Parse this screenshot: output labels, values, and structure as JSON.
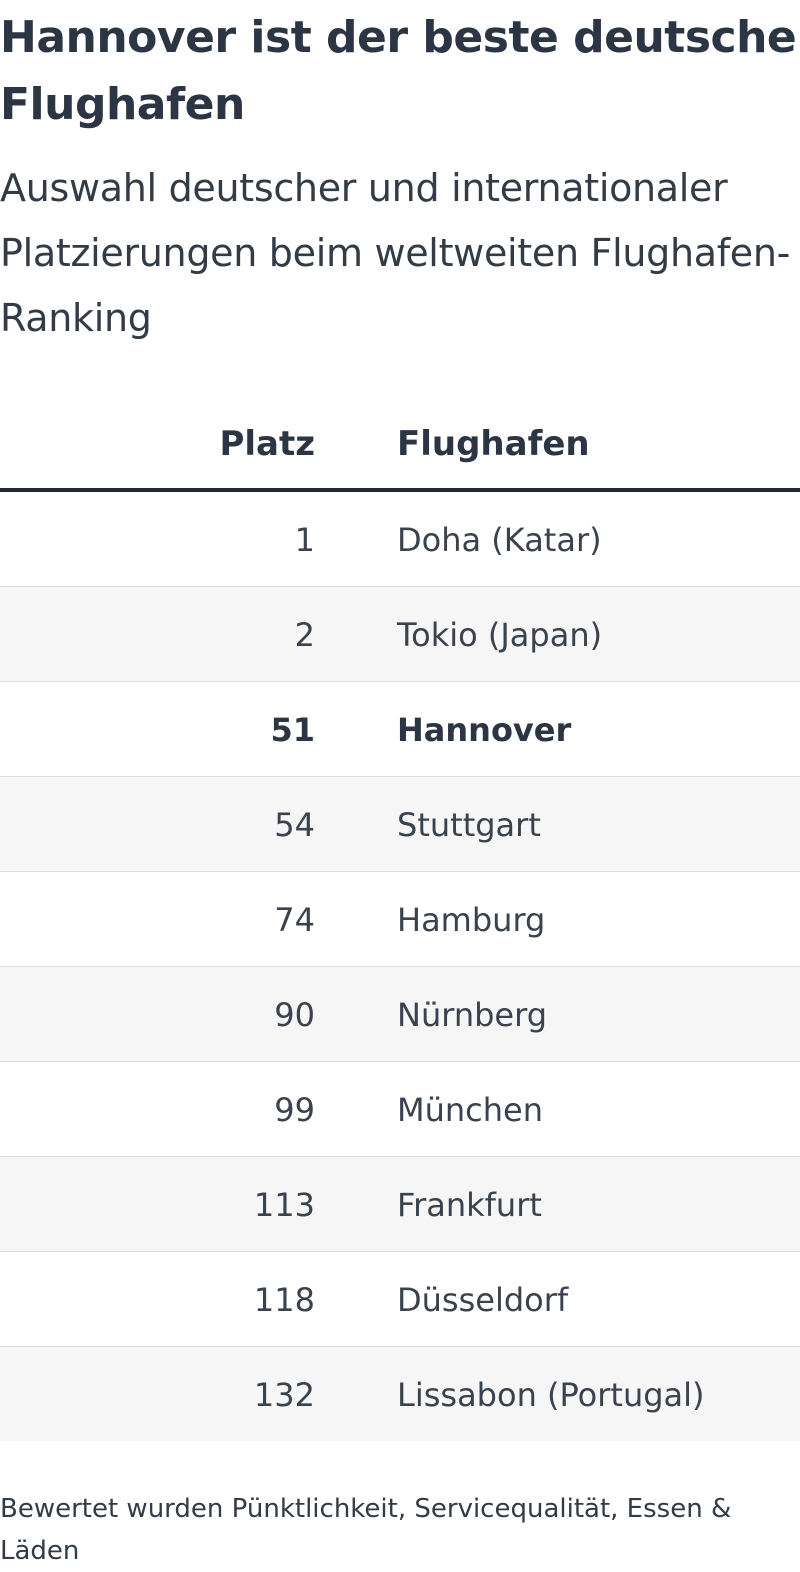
{
  "title": "Hannover ist der beste deutsche Flughafen",
  "subtitle": "Auswahl deutscher und internationaler Platzierungen beim weltweiten Flughafen-Ranking",
  "footnote": "Bewertet wurden Pünktlichkeit, Servicequalität, Essen & Läden",
  "colors": {
    "text": "#2b3543",
    "header_rule": "#222831",
    "row_alt": "#f6f6f6",
    "row_divider": "#dcdcdc"
  },
  "chart_data": {
    "type": "table",
    "title": "Hannover ist der beste deutsche Flughafen",
    "subtitle": "Auswahl deutscher und internationaler Platzierungen beim weltweiten Flughafen-Ranking",
    "columns": [
      "Platz",
      "Flughafen"
    ],
    "highlighted_row": "Hannover",
    "rows": [
      {
        "rank": "1",
        "airport": "Doha (Katar)"
      },
      {
        "rank": "2",
        "airport": "Tokio (Japan)"
      },
      {
        "rank": "51",
        "airport": "Hannover"
      },
      {
        "rank": "54",
        "airport": "Stuttgart"
      },
      {
        "rank": "74",
        "airport": "Hamburg"
      },
      {
        "rank": "90",
        "airport": "Nürnberg"
      },
      {
        "rank": "99",
        "airport": "München"
      },
      {
        "rank": "113",
        "airport": "Frankfurt"
      },
      {
        "rank": "118",
        "airport": "Düsseldorf"
      },
      {
        "rank": "132",
        "airport": "Lissabon (Portugal)"
      }
    ],
    "footnote": "Bewertet wurden Pünktlichkeit, Servicequalität, Essen & Läden"
  }
}
